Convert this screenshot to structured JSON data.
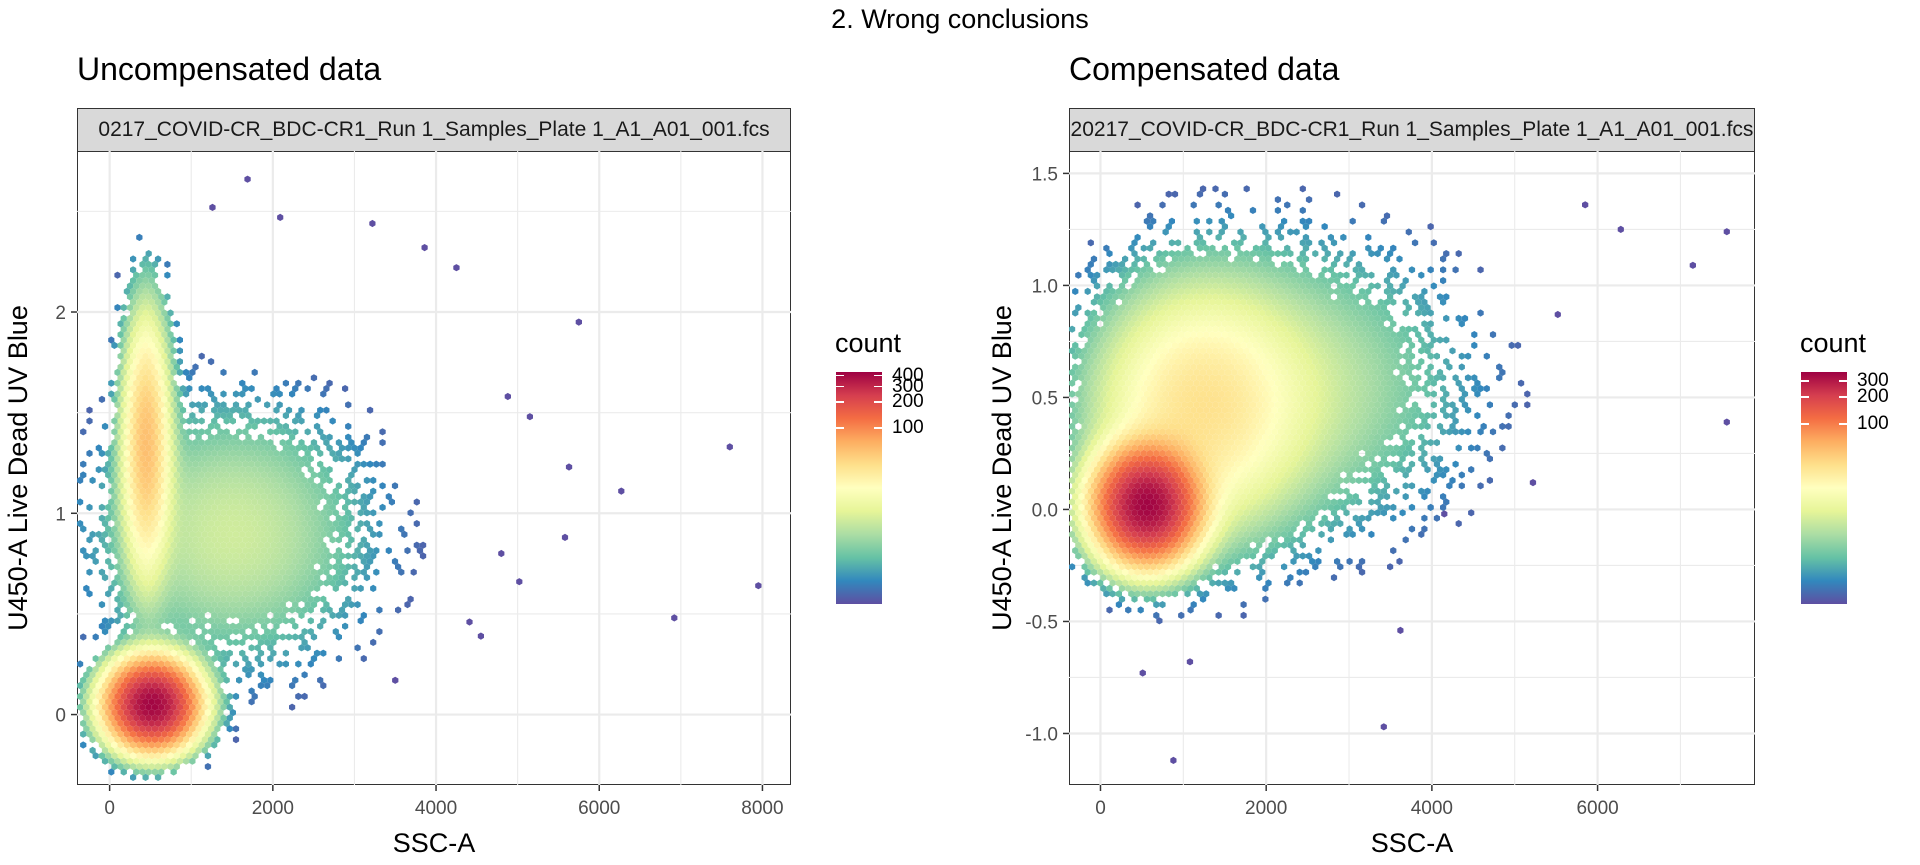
{
  "main_title": "2. Wrong conclusions",
  "colors": {
    "scale": [
      "#5e4fa2",
      "#3288bd",
      "#66c2a5",
      "#abdda4",
      "#e6f598",
      "#ffffbf",
      "#fee08b",
      "#fdae61",
      "#f46d43",
      "#d53e4f",
      "#9e0142"
    ],
    "strip_bg": "#d9d9d9",
    "gridline": "#ebebeb"
  },
  "chart_data": [
    {
      "type": "hexbin",
      "title": "Uncompensated data",
      "facet_label": "0217_COVID-CR_BDC-CR1_Run 1_Samples_Plate 1_A1_A01_001.fcs",
      "xlabel": "SSC-A",
      "ylabel": "U450-A Live Dead UV Blue",
      "xlim": [
        -400,
        8350
      ],
      "ylim": [
        -0.35,
        2.8
      ],
      "x_ticks": [
        0,
        2000,
        4000,
        6000,
        8000
      ],
      "x_tick_labels": [
        "0",
        "2000",
        "4000",
        "6000",
        "8000"
      ],
      "y_ticks": [
        0,
        1,
        2
      ],
      "y_tick_labels": [
        "0",
        "1",
        "2"
      ],
      "legend": {
        "title": "count",
        "min": 1,
        "max": 440,
        "ticks": [
          100,
          200,
          300,
          400
        ],
        "tick_labels": [
          "100",
          "200",
          "300",
          "400"
        ]
      },
      "clusters": [
        {
          "x": 520,
          "y": 0.05,
          "sx": 280,
          "sy": 0.11,
          "peak": 420
        },
        {
          "x": 450,
          "y": 1.35,
          "sx": 160,
          "sy": 0.35,
          "peak": 55
        },
        {
          "x": 1500,
          "y": 0.9,
          "sx": 900,
          "sy": 0.35,
          "peak": 8
        }
      ],
      "outliers": [
        [
          7600,
          1.33
        ],
        [
          7950,
          0.64
        ],
        [
          6920,
          0.48
        ],
        [
          6270,
          1.11
        ],
        [
          5630,
          1.23
        ],
        [
          5750,
          1.95
        ],
        [
          5580,
          0.88
        ],
        [
          5150,
          1.48
        ],
        [
          4880,
          1.58
        ],
        [
          5020,
          0.66
        ],
        [
          4550,
          0.39
        ],
        [
          4410,
          0.46
        ],
        [
          4250,
          2.22
        ],
        [
          3860,
          2.32
        ],
        [
          3220,
          2.44
        ],
        [
          1690,
          2.66
        ],
        [
          1260,
          2.52
        ],
        [
          2090,
          2.47
        ],
        [
          3500,
          0.17
        ],
        [
          4800,
          0.8
        ]
      ]
    },
    {
      "type": "hexbin",
      "title": "Compensated data",
      "facet_label": "20217_COVID-CR_BDC-CR1_Run 1_Samples_Plate 1_A1_A01_001.fcs",
      "xlabel": "SSC-A",
      "ylabel": "U450-A Live Dead UV Blue",
      "xlim": [
        -380,
        7900
      ],
      "ylim": [
        -1.23,
        1.6
      ],
      "x_ticks": [
        0,
        2000,
        4000,
        6000
      ],
      "x_tick_labels": [
        "0",
        "2000",
        "4000",
        "6000"
      ],
      "y_ticks": [
        -1.0,
        -0.5,
        0.0,
        0.5,
        1.0,
        1.5
      ],
      "y_tick_labels": [
        "-1.0",
        "-0.5",
        "0.0",
        "0.5",
        "1.0",
        "1.5"
      ],
      "legend": {
        "title": "count",
        "min": 1,
        "max": 380,
        "ticks": [
          100,
          200,
          300
        ],
        "tick_labels": [
          "100",
          "200",
          "300"
        ]
      },
      "clusters": [
        {
          "x": 560,
          "y": 0.02,
          "sx": 320,
          "sy": 0.13,
          "peak": 360
        },
        {
          "x": 1200,
          "y": 0.45,
          "sx": 700,
          "sy": 0.3,
          "peak": 30
        },
        {
          "x": 2400,
          "y": 0.55,
          "sx": 1100,
          "sy": 0.35,
          "peak": 6
        }
      ],
      "outliers": [
        [
          7560,
          1.24
        ],
        [
          7560,
          0.39
        ],
        [
          7150,
          1.09
        ],
        [
          6280,
          1.25
        ],
        [
          5850,
          1.36
        ],
        [
          5520,
          0.87
        ],
        [
          5220,
          0.12
        ],
        [
          4150,
          -0.02
        ],
        [
          3620,
          -0.54
        ],
        [
          3420,
          -0.97
        ],
        [
          1080,
          -0.68
        ],
        [
          880,
          -1.12
        ],
        [
          510,
          -0.73
        ]
      ]
    }
  ]
}
